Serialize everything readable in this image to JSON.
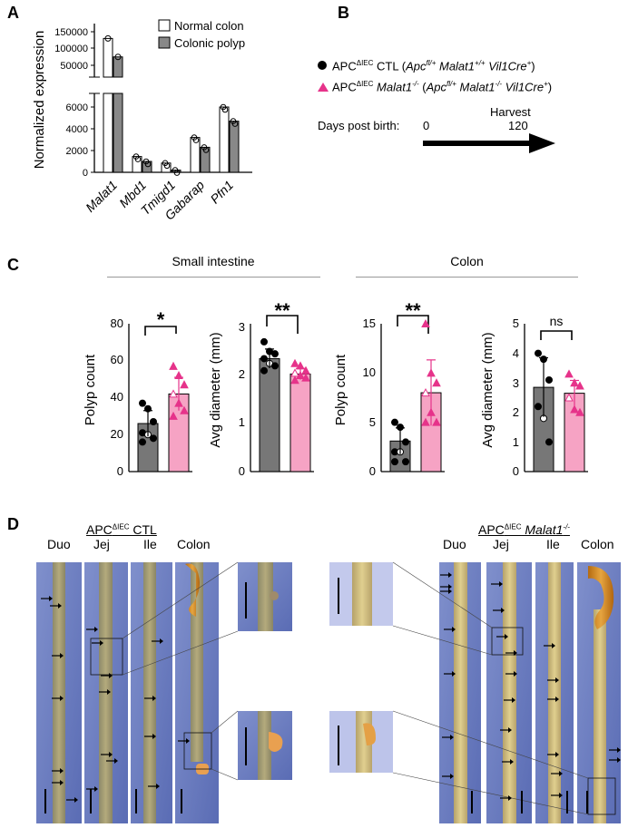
{
  "panels": {
    "a": "A",
    "b": "B",
    "c": "C",
    "d": "D"
  },
  "panel_a": {
    "ylabel": "Normalized expression",
    "legend": [
      "Normal colon",
      "Colonic polyp"
    ],
    "upper_ticks": [
      "150000",
      "100000",
      "50000"
    ],
    "lower_ticks": [
      "6000",
      "4000",
      "2000",
      "0"
    ],
    "genes": [
      "Malat1",
      "Mbd1",
      "Tmigd1",
      "Gabarap",
      "Pfn1"
    ]
  },
  "panel_b": {
    "legend": [
      {
        "main": "APC",
        "sup": "ΔIEC",
        "rest": " CTL (",
        "geno": "Apc",
        "geno_sup": "fl/+",
        "geno2": " Malat1",
        "geno2_sup": "+/+",
        "geno3": " Vil1Cre",
        "geno3_sup": "+",
        "close": ")"
      },
      {
        "main": "APC",
        "sup": "ΔIEC",
        "italic": " Malat1",
        "italic_sup": "-/-",
        "rest": " (",
        "geno": "Apc",
        "geno_sup": "fl/+",
        "geno2": " Malat1",
        "geno2_sup": "-/-",
        "geno3": " Vil1Cre",
        "geno3_sup": "+",
        "close": ")"
      }
    ],
    "timeline_label": "Days post birth:",
    "start": "0",
    "end": "120",
    "harvest": "Harvest"
  },
  "panel_c": {
    "group_small": "Small intestine",
    "group_colon": "Colon",
    "plots": [
      {
        "ylabel": "Polyp count",
        "ticks": [
          "80",
          "60",
          "40",
          "20",
          "0"
        ],
        "sig": "*"
      },
      {
        "ylabel": "Avg diameter (mm)",
        "ticks": [
          "3",
          "2",
          "1",
          "0"
        ],
        "sig": "**"
      },
      {
        "ylabel": "Polyp count",
        "ticks": [
          "15",
          "10",
          "5",
          "0"
        ],
        "sig": "**"
      },
      {
        "ylabel": "Avg diameter (mm)",
        "ticks": [
          "5",
          "4",
          "3",
          "2",
          "1",
          "0"
        ],
        "sig": "ns"
      }
    ]
  },
  "panel_d": {
    "ctl_title": "APC",
    "ctl_sup": "ΔIEC",
    "ctl_rest": " CTL",
    "ko_title": "APC",
    "ko_sup": "ΔIEC",
    "ko_rest": " Malat1",
    "ko_rest_sup": "-/-",
    "segments_left": [
      "Duo",
      "Jej",
      "Ile",
      "Colon"
    ],
    "segments_right": [
      "Duo",
      "Jej",
      "Ile",
      "Colon"
    ]
  },
  "colors": {
    "normal_bar": "#ffffff",
    "polyp_bar": "#888888",
    "ctl_bar": "#777777",
    "ko_bar": "#f6a3c4",
    "ko_marker": "#e6338a",
    "photo_bg": "#6d7ec2"
  },
  "chart_data": [
    {
      "type": "bar",
      "title": "",
      "ylabel": "Normalized expression",
      "categories": [
        "Malat1",
        "Mbd1",
        "Tmigd1",
        "Gabarap",
        "Pfn1"
      ],
      "series": [
        {
          "name": "Normal colon",
          "values": [
            130000,
            1450,
            850,
            3200,
            6000
          ]
        },
        {
          "name": "Colonic polyp",
          "values": [
            75000,
            1000,
            200,
            2300,
            4700
          ]
        }
      ],
      "ylim_lower": [
        0,
        7000
      ],
      "ylim_upper": [
        30000,
        160000
      ]
    },
    {
      "type": "bar",
      "ylabel": "Polyp count",
      "categories": [
        "CTL",
        "Malat1-/-"
      ],
      "values": [
        26,
        42
      ],
      "points": [
        [
          37,
          34,
          27,
          21,
          20,
          18,
          16
        ],
        [
          57,
          52,
          47,
          42,
          37,
          33,
          30
        ]
      ],
      "ylim": [
        0,
        80
      ]
    },
    {
      "type": "bar",
      "ylabel": "Avg diameter (mm)",
      "categories": [
        "CTL",
        "Malat1-/-"
      ],
      "values": [
        2.35,
        2.03
      ],
      "points": [
        [
          2.7,
          2.5,
          2.45,
          2.35,
          2.25,
          2.2,
          2.1
        ],
        [
          2.25,
          2.2,
          2.1,
          2.05,
          2.0,
          1.95,
          1.9
        ]
      ],
      "ylim": [
        0,
        3
      ]
    },
    {
      "type": "bar",
      "ylabel": "Polyp count",
      "categories": [
        "CTL",
        "Malat1-/-"
      ],
      "values": [
        3.1,
        8.0
      ],
      "points": [
        [
          5,
          4.5,
          3,
          2,
          2,
          1,
          1
        ],
        [
          15,
          10,
          9,
          8,
          6,
          5,
          5
        ]
      ],
      "ylim": [
        0,
        15
      ]
    },
    {
      "type": "bar",
      "ylabel": "Avg diameter (mm)",
      "categories": [
        "CTL",
        "Malat1-/-"
      ],
      "values": [
        2.85,
        2.65
      ],
      "points": [
        [
          4.0,
          3.8,
          3.1,
          2.2,
          1.8,
          1.0
        ],
        [
          3.3,
          3.0,
          2.9,
          2.5,
          2.1,
          2.0
        ]
      ],
      "ylim": [
        0,
        5
      ]
    }
  ]
}
